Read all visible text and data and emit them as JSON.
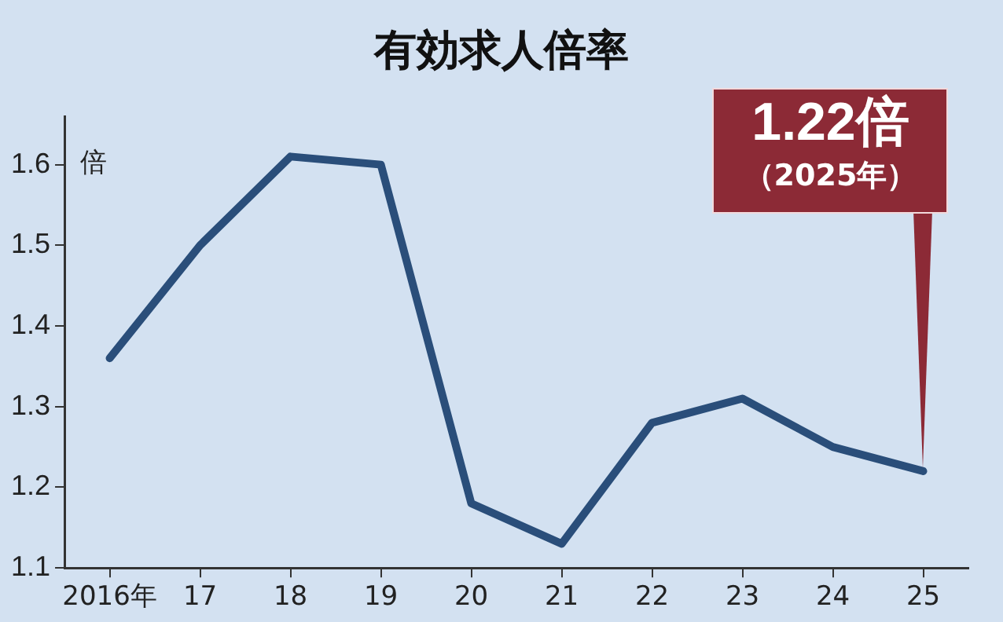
{
  "chart_data": {
    "type": "line",
    "title": "有効求人倍率",
    "ylabel": "倍",
    "categories": [
      "2016年",
      "17",
      "18",
      "19",
      "20",
      "21",
      "22",
      "23",
      "24",
      "25"
    ],
    "series": [
      {
        "color": "#2a4e7a",
        "values": [
          1.36,
          1.5,
          1.61,
          1.6,
          1.18,
          1.13,
          1.28,
          1.31,
          1.25,
          1.22
        ]
      }
    ],
    "ylim": [
      1.1,
      1.66
    ],
    "yticks": [
      1.1,
      1.2,
      1.3,
      1.4,
      1.5,
      1.6
    ],
    "grid": false,
    "legend": false,
    "marker": "none",
    "line_style": "solid",
    "annotations": [
      {
        "text": "1.22倍",
        "x": "25",
        "y": 1.22
      },
      {
        "text": "（2025年）",
        "x": "25",
        "y": 1.22
      }
    ]
  }
}
